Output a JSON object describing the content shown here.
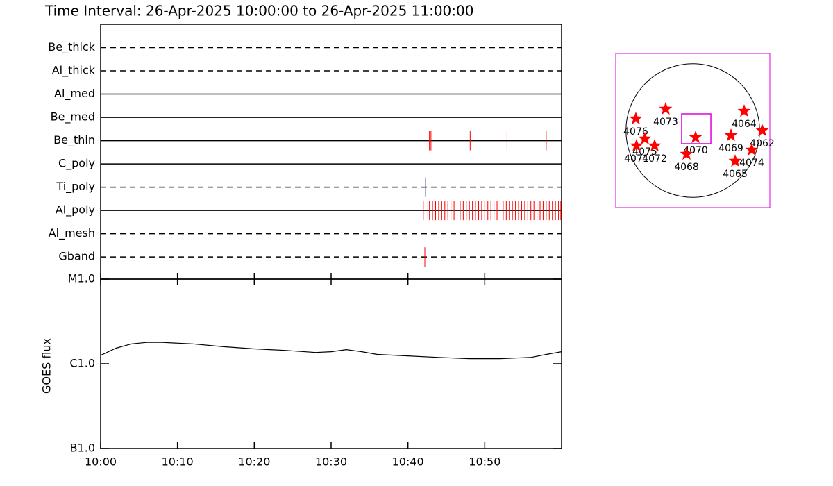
{
  "chart_data": [
    {
      "type": "timeline",
      "title": "Time Interval: 26-Apr-2025 10:00:00 to 26-Apr-2025 11:00:00",
      "xlim": [
        0,
        60
      ],
      "rows": [
        {
          "name": "Be_thick",
          "line": "dashed",
          "color": "#ff0000",
          "events": []
        },
        {
          "name": "Al_thick",
          "line": "dashed",
          "color": "#ff0000",
          "events": []
        },
        {
          "name": "Al_med",
          "line": "solid",
          "color": "#ff0000",
          "events": []
        },
        {
          "name": "Be_med",
          "line": "solid",
          "color": "#ff0000",
          "events": []
        },
        {
          "name": "Be_thin",
          "line": "solid",
          "color": "#ff0000",
          "events": [
            42.8,
            43.0,
            48.1,
            52.9,
            58.0
          ]
        },
        {
          "name": "C_poly",
          "line": "solid",
          "color": "#ff0000",
          "events": []
        },
        {
          "name": "Ti_poly",
          "line": "dashed",
          "color": "#2020a0",
          "events": [
            42.3
          ]
        },
        {
          "name": "Al_poly",
          "line": "solid",
          "color": "#ff0000",
          "events": [
            42.0,
            42.6,
            42.8,
            43.2,
            43.6,
            44.0,
            44.4,
            44.8,
            45.2,
            45.6,
            46.0,
            46.4,
            46.8,
            47.2,
            47.6,
            48.0,
            48.4,
            48.8,
            49.2,
            49.6,
            50.0,
            50.4,
            50.8,
            51.2,
            51.6,
            52.0,
            52.4,
            52.8,
            53.2,
            53.6,
            54.0,
            54.4,
            54.8,
            55.2,
            55.6,
            56.0,
            56.4,
            56.8,
            57.2,
            57.6,
            58.0,
            58.4,
            58.8,
            59.2,
            59.6,
            59.9
          ]
        },
        {
          "name": "Al_mesh",
          "line": "dashed",
          "color": "#ff0000",
          "events": []
        },
        {
          "name": "Gband",
          "line": "dashed",
          "color": "#ff0000",
          "events": [
            42.2
          ]
        }
      ]
    },
    {
      "type": "line",
      "ylabel": "GOES flux",
      "log": true,
      "color": "#000000",
      "xlim": [
        0,
        60
      ],
      "xticks": [
        {
          "value": 0,
          "label": "10:00"
        },
        {
          "value": 10,
          "label": "10:10"
        },
        {
          "value": 20,
          "label": "10:20"
        },
        {
          "value": 30,
          "label": "10:30"
        },
        {
          "value": 40,
          "label": "10:40"
        },
        {
          "value": 50,
          "label": "10:50"
        }
      ],
      "ylim": [
        1e-07,
        1e-05
      ],
      "yticks": [
        {
          "value": 1e-07,
          "label": "B1.0"
        },
        {
          "value": 1e-06,
          "label": "C1.0"
        },
        {
          "value": 1e-05,
          "label": "M1.0"
        }
      ],
      "x": [
        0,
        2,
        4,
        6,
        8,
        12,
        16,
        20,
        24,
        28,
        30,
        32,
        34,
        36,
        40,
        44,
        48,
        52,
        54,
        56,
        58,
        60
      ],
      "values": [
        1.26e-06,
        1.53e-06,
        1.72e-06,
        1.79e-06,
        1.79e-06,
        1.72e-06,
        1.59e-06,
        1.5e-06,
        1.44e-06,
        1.36e-06,
        1.39e-06,
        1.47e-06,
        1.39e-06,
        1.29e-06,
        1.24e-06,
        1.19e-06,
        1.15e-06,
        1.15e-06,
        1.17e-06,
        1.19e-06,
        1.29e-06,
        1.39e-06
      ]
    },
    {
      "type": "scatter",
      "xlim": [
        -1100,
        1100
      ],
      "ylim": [
        -1100,
        1100
      ],
      "sun_radius": 954,
      "fov_x": [
        -159,
        258
      ],
      "fov_y": [
        -188,
        238
      ],
      "frame_color": "#e000e0",
      "color": "#ff0000",
      "labels": [
        "4076",
        "4073",
        "4064",
        "4062",
        "4069",
        "4070",
        "4075",
        "4071",
        "4072",
        "4068",
        "4074",
        "4065"
      ],
      "x": [
        -813,
        -387,
        733,
        991,
        545,
        40,
        -684,
        -803,
        -545,
        -89,
        842,
        605
      ],
      "y": [
        168,
        307,
        277,
        0,
        -69,
        -99,
        -119,
        -218,
        -218,
        -337,
        -277,
        -436
      ]
    }
  ]
}
